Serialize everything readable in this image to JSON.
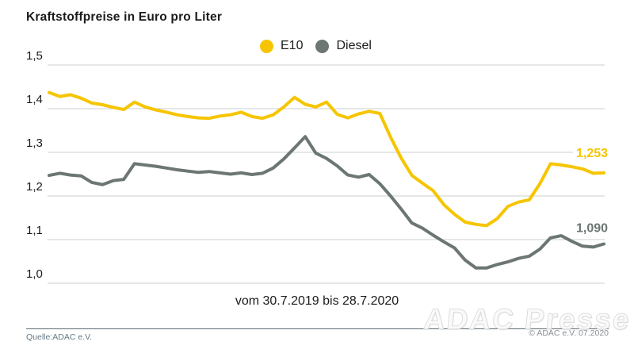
{
  "title": "Kraftstoffpreise in Euro pro Liter",
  "x_note": "vom 30.7.2019 bis 28.7.2020",
  "footer": {
    "source": "Quelle:ADAC e.V.",
    "copyright": "© ADAC e.V. 07.2020",
    "watermark": "ADAC Presse"
  },
  "colors": {
    "e10": "#F6C500",
    "diesel": "#6C7672",
    "grid": "#CBD0D1",
    "text": "#1B1B19",
    "footer_line": "#5D6B73"
  },
  "chart_data": {
    "type": "line",
    "title": "Kraftstoffpreise in Euro pro Liter",
    "ylabel": "Euro pro Liter",
    "x_start": "30.7.2019",
    "x_end": "28.7.2020",
    "x_note": "vom 30.7.2019 bis 28.7.2020",
    "x_interval": "weekly",
    "ylim": [
      1.0,
      1.5
    ],
    "grid": "horizontal",
    "legend_position": "top-center",
    "grid_color": "#CBD0D1",
    "y_ticks": [
      {
        "label": "1,5",
        "value": 1.5
      },
      {
        "label": "1,4",
        "value": 1.4
      },
      {
        "label": "1,3",
        "value": 1.3
      },
      {
        "label": "1,2",
        "value": 1.2
      },
      {
        "label": "1,1",
        "value": 1.1
      },
      {
        "label": "1,0",
        "value": 1.0
      }
    ],
    "series": [
      {
        "name": "E10",
        "color": "#F6C500",
        "end_label": "1,253",
        "end_value": 1.253,
        "values": [
          1.437,
          1.428,
          1.432,
          1.424,
          1.413,
          1.409,
          1.403,
          1.398,
          1.415,
          1.404,
          1.397,
          1.392,
          1.386,
          1.382,
          1.379,
          1.378,
          1.383,
          1.386,
          1.392,
          1.382,
          1.378,
          1.386,
          1.404,
          1.426,
          1.41,
          1.404,
          1.415,
          1.387,
          1.379,
          1.388,
          1.394,
          1.389,
          1.335,
          1.287,
          1.247,
          1.229,
          1.212,
          1.18,
          1.158,
          1.14,
          1.135,
          1.132,
          1.148,
          1.176,
          1.186,
          1.191,
          1.228,
          1.274,
          1.271,
          1.267,
          1.262,
          1.252,
          1.253
        ]
      },
      {
        "name": "Diesel",
        "color": "#6C7672",
        "end_label": "1,090",
        "end_value": 1.09,
        "values": [
          1.247,
          1.252,
          1.248,
          1.246,
          1.231,
          1.226,
          1.235,
          1.238,
          1.274,
          1.271,
          1.268,
          1.264,
          1.26,
          1.257,
          1.254,
          1.256,
          1.253,
          1.25,
          1.253,
          1.249,
          1.252,
          1.264,
          1.285,
          1.31,
          1.336,
          1.298,
          1.286,
          1.269,
          1.248,
          1.243,
          1.249,
          1.228,
          1.2,
          1.17,
          1.138,
          1.126,
          1.11,
          1.095,
          1.081,
          1.053,
          1.035,
          1.035,
          1.043,
          1.049,
          1.057,
          1.062,
          1.078,
          1.104,
          1.109,
          1.096,
          1.085,
          1.083,
          1.09
        ]
      }
    ]
  }
}
